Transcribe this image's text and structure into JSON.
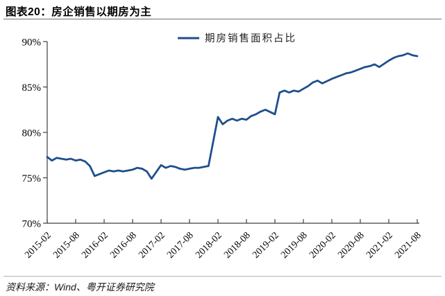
{
  "page": {
    "title": "图表20：房企销售以期房为主",
    "source": "资料来源：Wind、粤开证券研究院"
  },
  "chart_data": {
    "type": "line",
    "title": "图表20：房企销售以期房为主",
    "legend": [
      "期房销售面积占比"
    ],
    "legend_position": "top-center",
    "grid": false,
    "line_color": "#1F4E8C",
    "axis_color": "#3f3f3f",
    "label_color": "#000000",
    "ylim": [
      70,
      90
    ],
    "y_ticks": [
      90,
      85,
      80,
      75,
      70
    ],
    "y_tick_suffix": "%",
    "x_range": [
      "2015-02",
      "2021-08"
    ],
    "x_tick_labels": [
      "2015-02",
      "2015-08",
      "2016-02",
      "2016-08",
      "2017-02",
      "2017-08",
      "2018-02",
      "2018-08",
      "2019-02",
      "2019-08",
      "2020-02",
      "2020-08",
      "2021-02",
      "2021-08"
    ],
    "series": [
      {
        "name": "期房销售面积占比",
        "points": [
          [
            "2015-02",
            77.3
          ],
          [
            "2015-03",
            76.9
          ],
          [
            "2015-04",
            77.2
          ],
          [
            "2015-05",
            77.1
          ],
          [
            "2015-06",
            77.0
          ],
          [
            "2015-07",
            77.1
          ],
          [
            "2015-08",
            76.9
          ],
          [
            "2015-09",
            77.0
          ],
          [
            "2015-10",
            76.8
          ],
          [
            "2015-11",
            76.3
          ],
          [
            "2015-12",
            75.2
          ],
          [
            "2016-02",
            75.6
          ],
          [
            "2016-03",
            75.8
          ],
          [
            "2016-04",
            75.7
          ],
          [
            "2016-05",
            75.8
          ],
          [
            "2016-06",
            75.7
          ],
          [
            "2016-07",
            75.8
          ],
          [
            "2016-08",
            75.9
          ],
          [
            "2016-09",
            76.1
          ],
          [
            "2016-10",
            76.0
          ],
          [
            "2016-11",
            75.7
          ],
          [
            "2016-12",
            74.9
          ],
          [
            "2017-02",
            76.4
          ],
          [
            "2017-03",
            76.1
          ],
          [
            "2017-04",
            76.3
          ],
          [
            "2017-05",
            76.2
          ],
          [
            "2017-06",
            76.0
          ],
          [
            "2017-07",
            75.9
          ],
          [
            "2017-08",
            76.0
          ],
          [
            "2017-09",
            76.1
          ],
          [
            "2017-10",
            76.1
          ],
          [
            "2017-11",
            76.2
          ],
          [
            "2017-12",
            76.3
          ],
          [
            "2018-02",
            81.7
          ],
          [
            "2018-03",
            80.9
          ],
          [
            "2018-04",
            81.3
          ],
          [
            "2018-05",
            81.5
          ],
          [
            "2018-06",
            81.3
          ],
          [
            "2018-07",
            81.5
          ],
          [
            "2018-08",
            81.4
          ],
          [
            "2018-09",
            81.8
          ],
          [
            "2018-10",
            82.0
          ],
          [
            "2018-11",
            82.3
          ],
          [
            "2018-12",
            82.5
          ],
          [
            "2019-02",
            82.0
          ],
          [
            "2019-03",
            84.4
          ],
          [
            "2019-04",
            84.6
          ],
          [
            "2019-05",
            84.4
          ],
          [
            "2019-06",
            84.6
          ],
          [
            "2019-07",
            84.5
          ],
          [
            "2019-08",
            84.8
          ],
          [
            "2019-09",
            85.1
          ],
          [
            "2019-10",
            85.5
          ],
          [
            "2019-11",
            85.7
          ],
          [
            "2019-12",
            85.4
          ],
          [
            "2020-02",
            85.9
          ],
          [
            "2020-03",
            86.1
          ],
          [
            "2020-04",
            86.3
          ],
          [
            "2020-05",
            86.5
          ],
          [
            "2020-06",
            86.6
          ],
          [
            "2020-07",
            86.8
          ],
          [
            "2020-08",
            87.0
          ],
          [
            "2020-09",
            87.2
          ],
          [
            "2020-10",
            87.3
          ],
          [
            "2020-11",
            87.5
          ],
          [
            "2020-12",
            87.2
          ],
          [
            "2021-02",
            87.9
          ],
          [
            "2021-03",
            88.2
          ],
          [
            "2021-04",
            88.4
          ],
          [
            "2021-05",
            88.5
          ],
          [
            "2021-06",
            88.7
          ],
          [
            "2021-07",
            88.5
          ],
          [
            "2021-08",
            88.4
          ]
        ]
      }
    ]
  }
}
